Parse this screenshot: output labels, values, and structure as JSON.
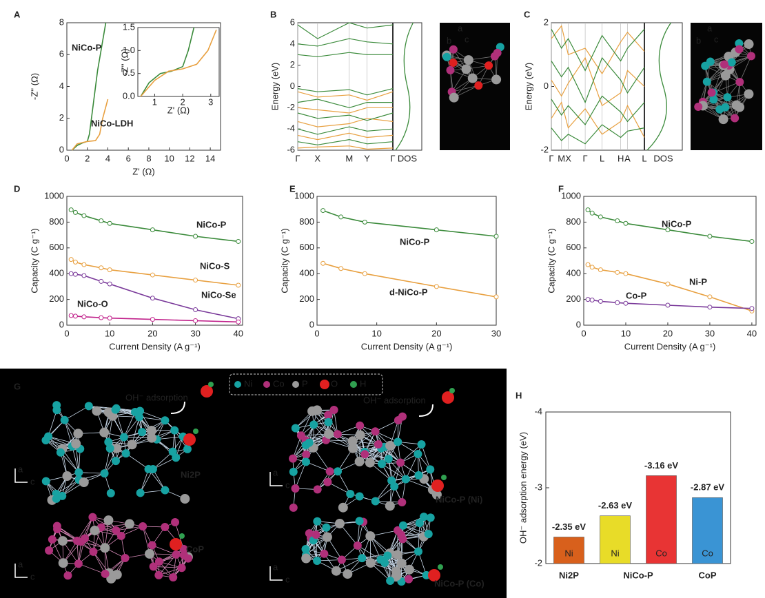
{
  "panel_labels": [
    "A",
    "B",
    "C",
    "D",
    "E",
    "F",
    "G",
    "H"
  ],
  "chart_data": [
    {
      "type": "line",
      "xlabel": "Z' (Ω)",
      "ylabel": "-Z'' (Ω)",
      "xlim": [
        0,
        15
      ],
      "xticks": [
        0,
        2,
        4,
        6,
        8,
        10,
        12,
        14
      ],
      "ylim": [
        0,
        8
      ],
      "yticks": [
        0,
        2,
        4,
        6,
        8
      ],
      "series": [
        {
          "name": "NiCo-P",
          "color": "#3a8a3a",
          "x": [
            0.5,
            1,
            1.5,
            2,
            2.2,
            2.4,
            3,
            3.8
          ],
          "values": [
            0,
            0.3,
            0.45,
            0.55,
            1,
            2,
            5,
            8
          ]
        },
        {
          "name": "NiCo-LDH",
          "color": "#e8a040",
          "x": [
            0.5,
            1,
            2,
            2.8,
            3.2,
            3.5,
            4
          ],
          "values": [
            0,
            0.4,
            0.55,
            0.6,
            1,
            2,
            3.2
          ]
        }
      ]
    },
    {
      "type": "line",
      "xlabel": "Z' (Ω)",
      "ylabel": "-Z'' (Ω)",
      "xlim": [
        0.4,
        3.3
      ],
      "xticks": [
        1,
        2,
        3
      ],
      "ylim": [
        0,
        1.5
      ],
      "yticks": [
        {
          "value": 0,
          "label": "0.0"
        },
        0.5,
        {
          "value": 1,
          "label": "1.0"
        },
        1.5
      ],
      "series": [
        {
          "color": "#3a8a3a",
          "x": [
            0.5,
            0.8,
            1.2,
            1.6,
            2,
            2.2,
            2.4
          ],
          "values": [
            0,
            0.3,
            0.5,
            0.55,
            0.65,
            1.0,
            1.5
          ]
        },
        {
          "color": "#e8a040",
          "x": [
            0.5,
            1,
            1.5,
            2,
            2.5,
            2.9,
            3.2
          ],
          "values": [
            0,
            0.35,
            0.55,
            0.6,
            0.7,
            1.0,
            1.45
          ]
        }
      ]
    },
    {
      "type": "band",
      "ylabel": "Energy (eV)",
      "dos_label": "DOS",
      "x": [
        0,
        1,
        2.6,
        3.5,
        4.8
      ],
      "xlim": [
        0,
        4.8
      ],
      "xticks": [
        {
          "value": 0,
          "label": "Γ"
        },
        {
          "value": 1,
          "label": "X"
        },
        {
          "value": 2.6,
          "label": "M"
        },
        {
          "value": 3.5,
          "label": "Y"
        },
        {
          "value": 4.8,
          "label": "Γ"
        }
      ],
      "ylim": [
        -6,
        6
      ],
      "yticks": [
        -6,
        -4,
        -2,
        0,
        2,
        4,
        6
      ],
      "series": [
        {
          "color": "#e8a040",
          "values": [
            -0.5,
            -1,
            -0.8,
            -1.3,
            -0.5
          ]
        },
        {
          "color": "#e8a040",
          "values": [
            -2,
            -2.2,
            -2.5,
            -2,
            -2
          ]
        },
        {
          "color": "#e8a040",
          "values": [
            -3.3,
            -3.8,
            -3.5,
            -3,
            -3.3
          ]
        },
        {
          "color": "#e8a040",
          "values": [
            -4.6,
            -5,
            -4.4,
            -4.8,
            -4.6
          ]
        },
        {
          "color": "#e8a040",
          "values": [
            -5.8,
            -5.7,
            -5.6,
            -5.9,
            -5.8
          ]
        },
        {
          "color": "#3a8a3a",
          "values": [
            5.8,
            4.5,
            6,
            5.5,
            5.8
          ]
        },
        {
          "color": "#3a8a3a",
          "values": [
            4,
            3.8,
            4.5,
            4.2,
            4
          ]
        },
        {
          "color": "#3a8a3a",
          "values": [
            3,
            2.8,
            3.2,
            3,
            3
          ]
        },
        {
          "color": "#3a8a3a",
          "values": [
            -0.2,
            -0.5,
            -0.3,
            -0.8,
            -0.2
          ]
        },
        {
          "color": "#3a8a3a",
          "values": [
            -1.5,
            -1.2,
            -2,
            -1.5,
            -1.5
          ]
        },
        {
          "color": "#3a8a3a",
          "values": [
            -2.5,
            -3,
            -2.7,
            -3.2,
            -2.5
          ]
        },
        {
          "color": "#3a8a3a",
          "values": [
            -4,
            -4.5,
            -3.8,
            -4.2,
            -4
          ]
        },
        {
          "color": "#3a8a3a",
          "values": [
            -5.2,
            -5.5,
            -5,
            -5.4,
            -5.2
          ]
        }
      ]
    },
    {
      "type": "band",
      "ylabel": "Energy (eV)",
      "dos_label": "DOS",
      "x": [
        0,
        0.6,
        1,
        2,
        3,
        4.1,
        4.5,
        5.5
      ],
      "xlim": [
        0,
        5.5
      ],
      "xticks": [
        {
          "value": 0,
          "label": "Γ"
        },
        {
          "value": 0.6,
          "label": "M"
        },
        {
          "value": 1,
          "label": "X"
        },
        {
          "value": 2,
          "label": "Γ"
        },
        {
          "value": 3,
          "label": "L"
        },
        {
          "value": 4.1,
          "label": "H"
        },
        {
          "value": 4.5,
          "label": "A"
        },
        {
          "value": 5.5,
          "label": "L"
        }
      ],
      "ylim": [
        -2,
        2
      ],
      "yticks": [
        -2,
        0,
        2
      ],
      "series": [
        {
          "color": "#e8a040",
          "values": [
            1.5,
            1.9,
            1.0,
            1.2,
            0.4,
            1.4,
            1.7,
            1.1
          ]
        },
        {
          "color": "#e8a040",
          "values": [
            0.2,
            -0.3,
            0.1,
            0.9,
            -0.6,
            -0.2,
            0.5,
            0.0
          ]
        },
        {
          "color": "#e8a040",
          "values": [
            -1.0,
            -0.5,
            -1.3,
            -0.7,
            -1.5,
            -1.1,
            -0.6,
            -1.6
          ]
        },
        {
          "color": "#3a8a3a",
          "values": [
            1.8,
            1.2,
            1.5,
            0.5,
            1.6,
            0.8,
            1.2,
            1.8
          ]
        },
        {
          "color": "#3a8a3a",
          "values": [
            0.8,
            0.3,
            0.6,
            -0.5,
            0.9,
            0.2,
            -0.2,
            0.6
          ]
        },
        {
          "color": "#3a8a3a",
          "values": [
            -0.4,
            -0.9,
            -0.6,
            -1.2,
            -0.3,
            -0.8,
            -1.1,
            -0.5
          ]
        },
        {
          "color": "#3a8a3a",
          "values": [
            -1.3,
            -1.7,
            -1.5,
            -1.8,
            -1.2,
            -1.6,
            -1.4,
            -1.3
          ]
        }
      ]
    },
    {
      "type": "line",
      "markers": true,
      "xlabel": "Current Density (A g⁻¹)",
      "ylabel": "Capacity (C g⁻¹)",
      "x": [
        1,
        2,
        4,
        8,
        10,
        20,
        30,
        40
      ],
      "xlim": [
        0,
        41
      ],
      "xticks": [
        0,
        10,
        20,
        30,
        40
      ],
      "ylim": [
        0,
        1000
      ],
      "yticks": [
        0,
        200,
        400,
        600,
        800,
        1000
      ],
      "series": [
        {
          "name": "NiCo-P",
          "color": "#3a8a3a",
          "values": [
            895,
            875,
            850,
            810,
            790,
            740,
            690,
            650
          ]
        },
        {
          "name": "NiCo-S",
          "color": "#e8a040",
          "values": [
            510,
            490,
            470,
            445,
            430,
            390,
            350,
            310
          ]
        },
        {
          "name": "NiCo-Se",
          "color": "#7a3a9a",
          "values": [
            400,
            395,
            385,
            340,
            320,
            210,
            120,
            50
          ]
        },
        {
          "name": "NiCo-O",
          "color": "#c0208a",
          "values": [
            75,
            70,
            65,
            58,
            55,
            45,
            35,
            25
          ]
        }
      ]
    },
    {
      "type": "line",
      "markers": true,
      "xlabel": "Current Density (A g⁻¹)",
      "ylabel": "Capacity (C g⁻¹)",
      "x": [
        1,
        4,
        8,
        20,
        30
      ],
      "xlim": [
        0,
        30
      ],
      "xticks": [
        0,
        10,
        20,
        30
      ],
      "ylim": [
        0,
        1000
      ],
      "yticks": [
        0,
        200,
        400,
        600,
        800,
        1000
      ],
      "series": [
        {
          "name": "NiCo-P",
          "color": "#3a8a3a",
          "values": [
            890,
            840,
            800,
            740,
            690
          ]
        },
        {
          "name": "d-NiCo-P",
          "color": "#e8a040",
          "values": [
            480,
            440,
            400,
            300,
            220
          ]
        }
      ]
    },
    {
      "type": "line",
      "markers": true,
      "xlabel": "Current Density (A g⁻¹)",
      "ylabel": "Capacity (C g⁻¹)",
      "x": [
        1,
        2,
        4,
        8,
        10,
        20,
        30,
        40
      ],
      "xlim": [
        0,
        41
      ],
      "xticks": [
        0,
        10,
        20,
        30,
        40
      ],
      "ylim": [
        0,
        1000
      ],
      "yticks": [
        0,
        200,
        400,
        600,
        800,
        1000
      ],
      "series": [
        {
          "name": "NiCo-P",
          "color": "#3a8a3a",
          "values": [
            895,
            870,
            840,
            810,
            790,
            740,
            690,
            650
          ]
        },
        {
          "name": "Ni-P",
          "color": "#e8a040",
          "values": [
            470,
            450,
            430,
            410,
            400,
            320,
            220,
            110
          ]
        },
        {
          "name": "Co-P",
          "color": "#7a3a9a",
          "values": [
            200,
            195,
            185,
            175,
            170,
            155,
            140,
            130
          ]
        }
      ]
    },
    {
      "type": "bar",
      "ylabel": "OH⁻ adsorption energy (eV)",
      "categories": [
        "Ni",
        "Ni",
        "Co",
        "Co"
      ],
      "values": [
        -2.35,
        -2.63,
        -3.16,
        -2.87
      ],
      "value_labels": [
        "-2.35 eV",
        "-2.63 eV",
        "-3.16 eV",
        "-2.87 eV"
      ],
      "colors": [
        "#d8601c",
        "#e8dc28",
        "#e83434",
        "#3a94d4"
      ],
      "label_colors": [
        "#e09020",
        "#b8b020",
        "#d82828",
        "#2a8ad0"
      ],
      "ylim": [
        -2,
        -4
      ],
      "yticks": [
        -4,
        -3,
        -2
      ],
      "groups": [
        {
          "label": "Ni2P",
          "color": "#e09020"
        },
        {
          "label": "NiCo-P",
          "color": "#d02020"
        },
        {
          "label": "CoP",
          "color": "#2a8ad0"
        }
      ]
    }
  ],
  "structures": {
    "legend": [
      {
        "name": "Ni",
        "color": "#17a2a2"
      },
      {
        "name": "Co",
        "color": "#b0307a"
      },
      {
        "name": "P",
        "color": "#9a9a9a"
      },
      {
        "name": "O",
        "color": "#e02020"
      },
      {
        "name": "H",
        "color": "#30a050"
      }
    ],
    "adsorption_label": "OH⁻ adsorption",
    "axes": [
      "a",
      "b",
      "c"
    ],
    "models": [
      {
        "label": "Ni2P"
      },
      {
        "label": "CoP"
      },
      {
        "label": "NiCo-P (Ni)"
      },
      {
        "label": "NiCo-P (Co)"
      }
    ]
  }
}
